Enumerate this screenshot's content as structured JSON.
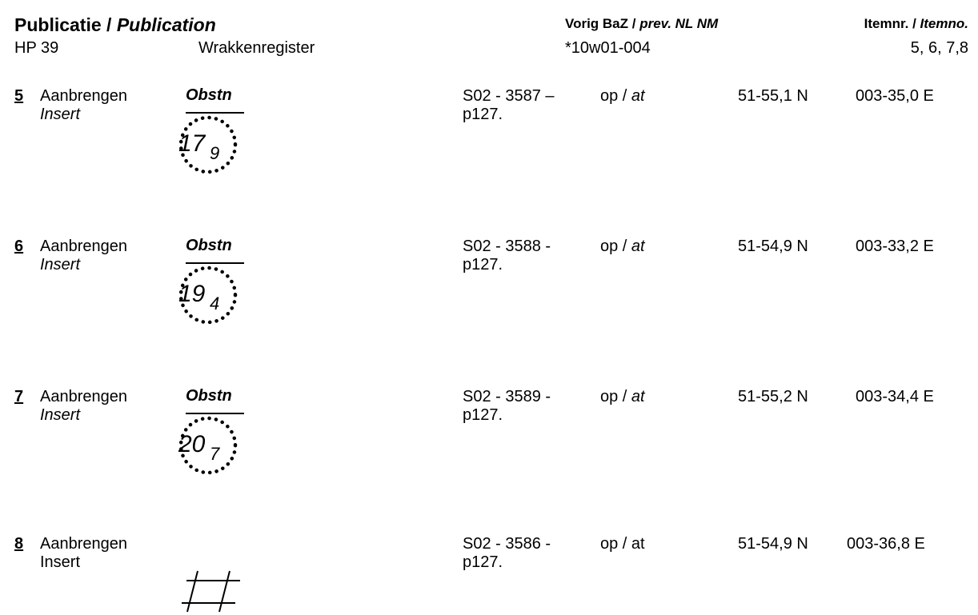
{
  "header": {
    "publication_label_nl": "Publicatie /",
    "publication_label_en": "Publication",
    "publication_code": "HP 39",
    "publication_name": "Wrakkenregister",
    "prev_label_nl": "Vorig BaZ /",
    "prev_label_en": "prev. NL NM",
    "prev_value": "*10w01-004",
    "item_label_nl": "Itemnr. /",
    "item_label_en": "Itemno.",
    "item_value": "5, 6, 7,8"
  },
  "items": [
    {
      "number": "5",
      "action_nl": "Aanbrengen",
      "action_en": "Insert",
      "symbol": "obstruction-depth",
      "symbol_label": "Obstn",
      "depth_main": "17",
      "depth_sub": "9",
      "reference_line1": "S02 - 3587 –",
      "reference_line2": "p127.",
      "at_nl": "op /",
      "at_en": "at",
      "lat": "51-55,1 N",
      "lon": "003-35,0 E"
    },
    {
      "number": "6",
      "action_nl": "Aanbrengen",
      "action_en": "Insert",
      "symbol": "obstruction-depth",
      "symbol_label": "Obstn",
      "depth_main": "19",
      "depth_sub": "4",
      "reference_line1": "S02 - 3588 -",
      "reference_line2": "p127.",
      "at_nl": "op /",
      "at_en": "at",
      "lat": "51-54,9 N",
      "lon": "003-33,2 E"
    },
    {
      "number": "7",
      "action_nl": "Aanbrengen",
      "action_en": "Insert",
      "symbol": "obstruction-depth",
      "symbol_label": "Obstn",
      "depth_main": "20",
      "depth_sub": "7",
      "reference_line1": "S02 - 3589 -",
      "reference_line2": "p127.",
      "at_nl": "op /",
      "at_en": "at",
      "lat": "51-55,2 N",
      "lon": "003-34,4 E"
    },
    {
      "number": "8",
      "action_nl": "Aanbrengen",
      "action_en": "Insert",
      "symbol": "foul-ground",
      "reference_line1": "S02 - 3586 -",
      "reference_line2": "p127.",
      "at_text": "op / at",
      "lat": "51-54,9 N",
      "lon": "003-36,8 E"
    }
  ]
}
